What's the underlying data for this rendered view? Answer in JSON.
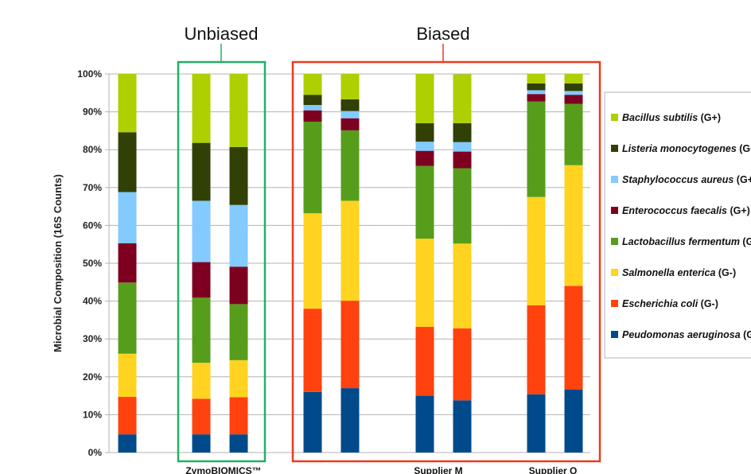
{
  "chart_data": {
    "type": "bar",
    "stacked": true,
    "ylabel": "Microbial Composition (16S Counts)",
    "y_ticks": [
      "0%",
      "10%",
      "20%",
      "30%",
      "40%",
      "50%",
      "60%",
      "70%",
      "80%",
      "90%",
      "100%"
    ],
    "ylim": [
      0,
      100
    ],
    "grid": true,
    "legend_position": "right",
    "x_group_labels": [
      "ZymoBIOMICS™",
      "Supplier M",
      "Supplier Q"
    ],
    "group_annotations": [
      {
        "label": "Unbiased",
        "color": "#22b065"
      },
      {
        "label": "Biased",
        "color": "#ee3a1e"
      }
    ],
    "series": [
      {
        "name": "Peudomonas aeruginosa",
        "gram": "(G-)",
        "color": "#004a8c",
        "values": [
          4.8,
          4.8,
          4.8,
          16.0,
          17.0,
          15.0,
          13.8,
          15.4,
          16.6
        ]
      },
      {
        "name": "Escherichia coli",
        "gram": "(G-)",
        "color": "#ff420e",
        "values": [
          9.9,
          9.4,
          9.8,
          22.0,
          23.1,
          18.2,
          19.0,
          23.5,
          27.4
        ]
      },
      {
        "name": "Salmonella enterica",
        "gram": "(G-)",
        "color": "#ffd320",
        "values": [
          11.4,
          9.5,
          9.8,
          25.2,
          26.4,
          23.3,
          22.4,
          28.6,
          31.9
        ]
      },
      {
        "name": "Lactobacillus fermentum",
        "gram": "(G+)",
        "color": "#579d1c",
        "values": [
          18.8,
          17.2,
          14.8,
          24.2,
          18.6,
          19.2,
          19.9,
          25.2,
          16.2
        ]
      },
      {
        "name": "Enterococcus faecalis",
        "gram": "(G+)",
        "color": "#7e0021",
        "values": [
          10.4,
          9.4,
          9.9,
          3.0,
          3.2,
          4.0,
          4.4,
          2.0,
          2.4
        ]
      },
      {
        "name": "Staphylococcus aureus",
        "gram": "(G+)",
        "color": "#83caff",
        "values": [
          13.5,
          16.2,
          16.3,
          1.4,
          1.9,
          2.4,
          2.5,
          1.0,
          1.0
        ]
      },
      {
        "name": "Listeria monocytogenes",
        "gram": "(G+)",
        "color": "#314004",
        "values": [
          15.8,
          15.3,
          15.3,
          2.7,
          3.1,
          4.9,
          5.0,
          1.8,
          2.0
        ]
      },
      {
        "name": "Bacillus subtilis",
        "gram": "(G+)",
        "color": "#aecf00",
        "values": [
          15.4,
          18.2,
          19.3,
          5.5,
          6.7,
          13.0,
          12.9,
          2.5,
          2.5
        ]
      }
    ]
  }
}
